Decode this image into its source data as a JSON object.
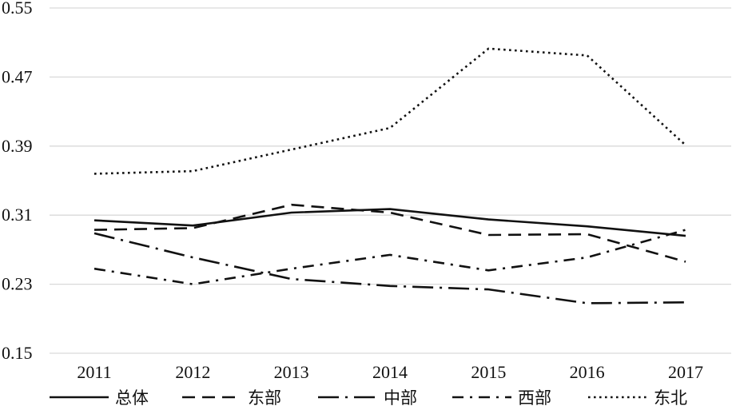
{
  "chart_data": {
    "type": "line",
    "categories": [
      "2011",
      "2012",
      "2013",
      "2014",
      "2015",
      "2016",
      "2017"
    ],
    "ylim": [
      0.15,
      0.55
    ],
    "yticks": [
      "0.15",
      "0.23",
      "0.31",
      "0.39",
      "0.47",
      "0.55"
    ],
    "grid": true,
    "legend_position": "bottom",
    "series": [
      {
        "name": "总体",
        "style": "solid",
        "values": [
          0.304,
          0.298,
          0.313,
          0.317,
          0.305,
          0.297,
          0.286
        ]
      },
      {
        "name": "东部",
        "style": "dashed",
        "values": [
          0.293,
          0.295,
          0.322,
          0.313,
          0.287,
          0.288,
          0.256
        ]
      },
      {
        "name": "中部",
        "style": "long-dash-dot",
        "values": [
          0.289,
          0.261,
          0.236,
          0.228,
          0.224,
          0.208,
          0.209
        ]
      },
      {
        "name": "西部",
        "style": "dash-dot",
        "values": [
          0.248,
          0.23,
          0.248,
          0.264,
          0.246,
          0.261,
          0.293
        ]
      },
      {
        "name": "东北",
        "style": "dotted",
        "values": [
          0.358,
          0.361,
          0.386,
          0.411,
          0.503,
          0.495,
          0.391
        ]
      }
    ]
  }
}
